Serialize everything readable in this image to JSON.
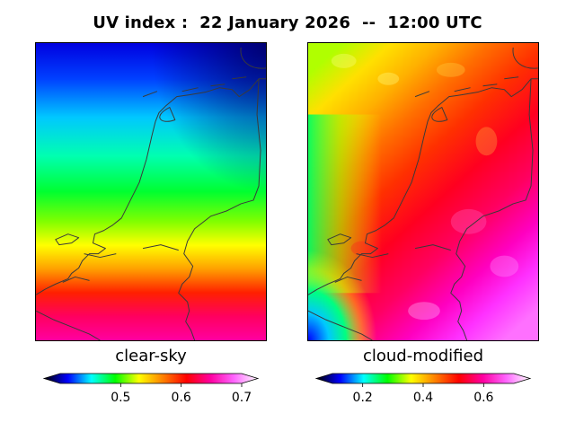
{
  "title": "UV index :  22 January 2026  --  12:00 UTC",
  "colors": {
    "border": "#000000",
    "coastline": "#3a3a3a",
    "stops": [
      "#000000",
      "#0000ff",
      "#00ffff",
      "#00ff00",
      "#ffff00",
      "#ff8000",
      "#ff0000",
      "#ff00a0",
      "#ff66ff",
      "#ffffff"
    ]
  },
  "chart_data": [
    {
      "type": "heatmap",
      "label": "clear-sky",
      "region": "Netherlands",
      "rows_north_to_south": [
        0.42,
        0.46,
        0.5,
        0.54,
        0.58,
        0.62,
        0.66
      ],
      "colorbar": {
        "min": 0.4,
        "max": 0.7,
        "ticks": [
          0.5,
          0.6,
          0.7
        ],
        "tick_labels": [
          "0.5",
          "0.6",
          "0.7"
        ],
        "extend": "both"
      }
    },
    {
      "type": "heatmap",
      "label": "cloud-modified",
      "region": "Netherlands",
      "rows_north_to_south": [
        0.38,
        0.45,
        0.5,
        0.52,
        0.56,
        0.6,
        0.65
      ],
      "colorbar": {
        "min": 0.1,
        "max": 0.7,
        "ticks": [
          0.2,
          0.4,
          0.6
        ],
        "tick_labels": [
          "0.2",
          "0.4",
          "0.6"
        ],
        "extend": "both"
      }
    }
  ]
}
